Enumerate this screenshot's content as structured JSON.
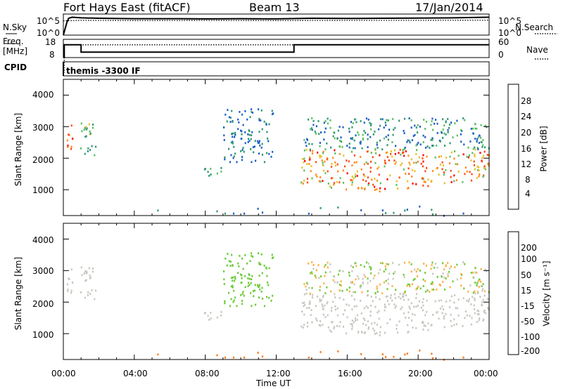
{
  "header": {
    "station": "Fort Hays East (fitACF)",
    "beam": "Beam 13",
    "date": "17/Jan/2014"
  },
  "noise_panel": {
    "left_label": "N.Sky",
    "right_label": "N.Search",
    "left_ticks": [
      "10^5",
      "10^0"
    ],
    "right_ticks": [
      "10^5",
      "10^0"
    ]
  },
  "freq_panel": {
    "left_label_1": "Freq.",
    "left_label_2": "[MHz]",
    "right_label": "Nave",
    "left_ticks": [
      "18",
      "8"
    ],
    "right_ticks": [
      "60",
      "0"
    ]
  },
  "cpid_panel": {
    "label": "CPID",
    "value": "themis -3300 IF"
  },
  "power_panel": {
    "ylabel": "Slant Range [km]",
    "yticks": [
      "4000",
      "3000",
      "2000",
      "1000"
    ],
    "colorbar_label": "Power [dB]",
    "colorbar_ticks": [
      "28",
      "24",
      "20",
      "16",
      "12",
      "8",
      "4"
    ],
    "colors": [
      "#0018ff",
      "#1e5fc8",
      "#2e9a6e",
      "#58c060",
      "#e6c02a",
      "#ff8a1a",
      "#ff4a14",
      "#ff0000"
    ]
  },
  "velocity_panel": {
    "ylabel": "Slant Range [km]",
    "yticks": [
      "4000",
      "3000",
      "2000",
      "1000"
    ],
    "colorbar_label": "Velocity [m s⁻¹]",
    "colorbar_ticks": [
      "200",
      "100",
      "50",
      "15",
      "-15",
      "-50",
      "-100",
      "-200"
    ],
    "colors": [
      "#1c2ec8",
      "#1f7fc4",
      "#2c8a52",
      "#6ccc3a",
      "#c8c8c0",
      "#ffb040",
      "#ff7a14",
      "#ff2a0a",
      "#ff0000"
    ]
  },
  "xaxis": {
    "ticks": [
      "00:00",
      "04:00",
      "08:00",
      "12:00",
      "16:00",
      "20:00",
      "00:00"
    ],
    "label": "Time UT"
  },
  "chart_data": [
    {
      "type": "line",
      "panel": "noise",
      "x_range_hours": [
        0,
        24
      ],
      "series": [
        {
          "name": "N.Sky",
          "style": "solid",
          "x": [
            0,
            0.2,
            0.3,
            0.5,
            1,
            2,
            4,
            6,
            8,
            10,
            12,
            14,
            16,
            18,
            20,
            22,
            24
          ],
          "y_level": [
            0.0,
            0.6,
            0.8,
            0.85,
            0.82,
            0.8,
            0.78,
            0.78,
            0.77,
            0.78,
            0.77,
            0.8,
            0.79,
            0.8,
            0.81,
            0.82,
            0.85
          ]
        },
        {
          "name": "N.Search",
          "style": "dotted",
          "x": [
            0,
            1,
            4,
            8,
            12,
            16,
            20,
            24
          ],
          "y_level": [
            0.68,
            0.7,
            0.69,
            0.7,
            0.69,
            0.7,
            0.7,
            0.71
          ]
        }
      ]
    },
    {
      "type": "line",
      "panel": "frequency",
      "x_range_hours": [
        0,
        24
      ],
      "series": [
        {
          "name": "Freq. [MHz]",
          "style": "solid",
          "x": [
            0,
            0.05,
            0.05,
            1.0,
            1.0,
            13.0,
            13.0,
            24.0
          ],
          "y": [
            8,
            8,
            15,
            15,
            11,
            11,
            15,
            15
          ]
        },
        {
          "name": "Nave",
          "style": "dotted",
          "x": [
            0,
            0.05,
            0.05,
            24
          ],
          "y": [
            0,
            0,
            15,
            15
          ]
        }
      ],
      "ylim_freq": [
        8,
        18
      ],
      "ylim_nave": [
        0,
        60
      ]
    },
    {
      "type": "heatmap",
      "panel": "power",
      "xlabel": "Time UT",
      "ylabel": "Slant Range [km]",
      "x_range_hours": [
        0,
        24
      ],
      "ylim": [
        180,
        4500
      ],
      "colorbar": {
        "label": "Power [dB]",
        "range": [
          0,
          30
        ]
      },
      "regions": [
        {
          "t": [
            0.0,
            0.5
          ],
          "r": [
            2200,
            3100
          ],
          "power": [
            20,
            28
          ]
        },
        {
          "t": [
            0.9,
            1.8
          ],
          "r": [
            2000,
            3150
          ],
          "power": [
            8,
            16
          ]
        },
        {
          "t": [
            7.9,
            9.0
          ],
          "r": [
            1400,
            1800
          ],
          "power": [
            8,
            14
          ]
        },
        {
          "t": [
            9.0,
            11.8
          ],
          "r": [
            1900,
            3600
          ],
          "power": [
            4,
            10
          ]
        },
        {
          "t": [
            13.3,
            24.0
          ],
          "r": [
            900,
            2300
          ],
          "power": [
            12,
            28
          ]
        },
        {
          "t": [
            13.5,
            24.0
          ],
          "r": [
            2300,
            3300
          ],
          "power": [
            4,
            14
          ]
        },
        {
          "t": [
            0.0,
            24.0
          ],
          "r": [
            200,
            500
          ],
          "power": [
            4,
            10
          ]
        }
      ]
    },
    {
      "type": "heatmap",
      "panel": "velocity",
      "xlabel": "Time UT",
      "ylabel": "Slant Range [km]",
      "x_range_hours": [
        0,
        24
      ],
      "ylim": [
        180,
        4500
      ],
      "colorbar": {
        "label": "Velocity [m s⁻¹]",
        "range": [
          -200,
          200
        ]
      },
      "regions": [
        {
          "t": [
            0.0,
            0.5
          ],
          "r": [
            2200,
            3100
          ],
          "velocity": [
            -15,
            15
          ]
        },
        {
          "t": [
            0.9,
            1.8
          ],
          "r": [
            2000,
            3150
          ],
          "velocity": [
            -15,
            15
          ]
        },
        {
          "t": [
            7.9,
            9.0
          ],
          "r": [
            1400,
            1800
          ],
          "velocity": [
            -15,
            15
          ]
        },
        {
          "t": [
            9.0,
            11.8
          ],
          "r": [
            1900,
            3600
          ],
          "velocity": [
            15,
            50
          ]
        },
        {
          "t": [
            13.3,
            24.0
          ],
          "r": [
            900,
            2300
          ],
          "velocity": [
            -15,
            15
          ]
        },
        {
          "t": [
            13.5,
            24.0
          ],
          "r": [
            2300,
            3300
          ],
          "velocity": [
            -50,
            50
          ]
        },
        {
          "t": [
            0.0,
            24.0
          ],
          "r": [
            200,
            500
          ],
          "velocity": [
            -100,
            -50
          ]
        }
      ]
    }
  ]
}
